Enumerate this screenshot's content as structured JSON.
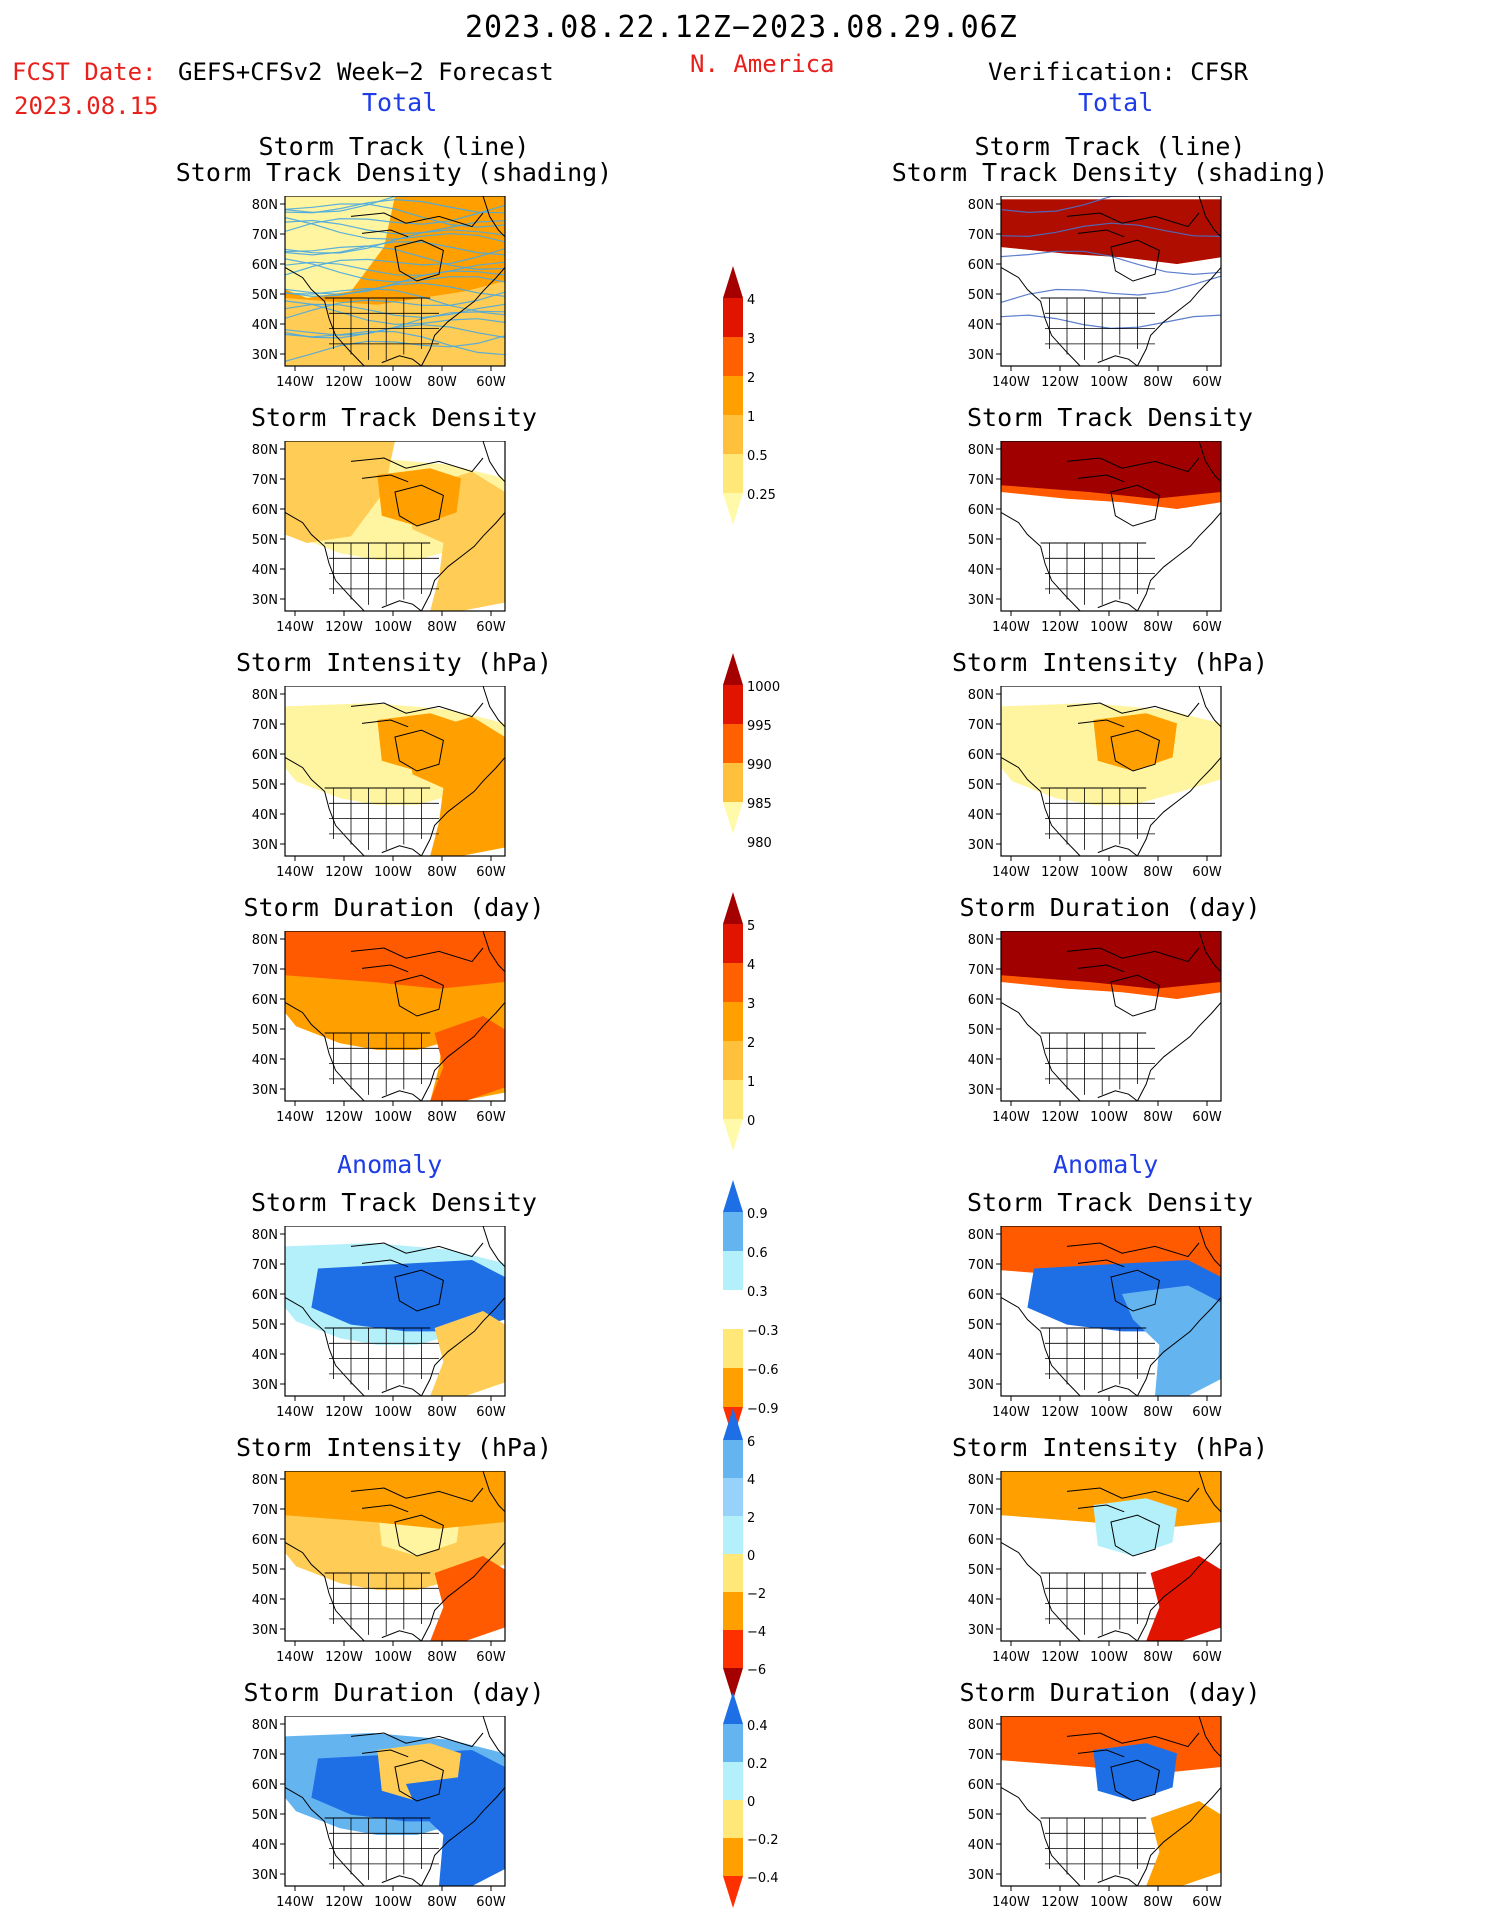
{
  "header": {
    "title": "2023.08.22.12Z−2023.08.29.06Z",
    "region": "N. America",
    "fcst_label": "FCST Date:",
    "fcst_model": "GEFS+CFSv2 Week−2 Forecast",
    "fcst_date": "2023.08.15",
    "verification": "Verification: CFSR"
  },
  "sections": {
    "total": "Total",
    "anomaly": "Anomaly"
  },
  "panel_titles": {
    "track_line": "Storm Track (line)",
    "track_shading": "Storm Track Density (shading)",
    "density": "Storm Track Density",
    "intensity": "Storm Intensity (hPa)",
    "duration": "Storm Duration (day)"
  },
  "axes": {
    "lat_ticks": [
      "30N",
      "40N",
      "50N",
      "60N",
      "70N",
      "80N"
    ],
    "lon_ticks": [
      "140W",
      "120W",
      "100W",
      "80W",
      "60W"
    ]
  },
  "colorbars": [
    {
      "id": "density",
      "labels": [
        "0.25",
        "0.5",
        "1",
        "2",
        "3",
        "4"
      ],
      "colors": [
        "#fffaaa",
        "#ffe878",
        "#ffc03c",
        "#ffa000",
        "#ff6000",
        "#e11400",
        "#a50000"
      ]
    },
    {
      "id": "intensity",
      "labels": [
        "1000",
        "995",
        "990",
        "985",
        "980"
      ],
      "colors": [
        "#fffaaa",
        "#ffc03c",
        "#ff6000",
        "#e11400",
        "#a50000"
      ]
    },
    {
      "id": "duration",
      "labels": [
        "0",
        "1",
        "2",
        "3",
        "4",
        "5"
      ],
      "colors": [
        "#fffaaa",
        "#ffe878",
        "#ffc03c",
        "#ffa000",
        "#ff6000",
        "#e11400",
        "#a50000"
      ]
    },
    {
      "id": "density-anomaly",
      "labels": [
        "0.9",
        "0.6",
        "0.3",
        "−0.3",
        "−0.6",
        "−0.9"
      ],
      "colors": [
        "#ff3000",
        "#ffa000",
        "#ffe878",
        "#ffffff",
        "#b4f0fa",
        "#64b4f0",
        "#1e6ee6"
      ]
    },
    {
      "id": "intensity-anomaly",
      "labels": [
        "6",
        "4",
        "2",
        "0",
        "−2",
        "−4",
        "−6"
      ],
      "colors": [
        "#a50000",
        "#ff3000",
        "#ffa000",
        "#ffe878",
        "#b4f0fa",
        "#96d2fa",
        "#64b4f0",
        "#1e6ee6"
      ]
    },
    {
      "id": "duration-anomaly",
      "labels": [
        "0.4",
        "0.2",
        "0",
        "−0.2",
        "−0.4"
      ],
      "colors": [
        "#ff3000",
        "#ffa000",
        "#ffe878",
        "#b4f0fa",
        "#64b4f0",
        "#1e6ee6"
      ]
    }
  ],
  "colors": {
    "yellow": "#fff5a0",
    "lightorange": "#ffcc55",
    "orange": "#ffa000",
    "redorange": "#ff5a00",
    "red": "#e11400",
    "darkred": "#a00000",
    "lightblue": "#b4f0fa",
    "midblue": "#64b4f0",
    "blue": "#1e6ee6",
    "track": "#4aa8e0"
  }
}
